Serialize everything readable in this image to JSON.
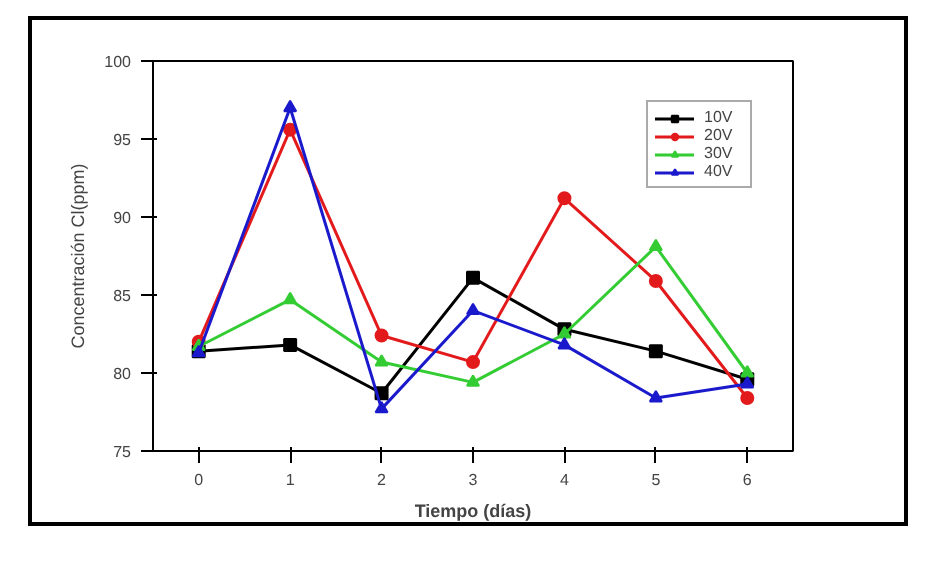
{
  "chart_data": {
    "type": "line",
    "xlabel": "Tiempo (días)",
    "ylabel": "Concentración Cl(ppm)",
    "x": [
      0,
      1,
      2,
      3,
      4,
      5,
      6
    ],
    "xlim": [
      -0.5,
      6.5
    ],
    "xticks": [
      0,
      1,
      2,
      3,
      4,
      5,
      6
    ],
    "ylim": [
      75,
      100
    ],
    "yticks": [
      75,
      80,
      85,
      90,
      95,
      100
    ],
    "grid": false,
    "legend": "top right",
    "series": [
      {
        "name": "10V",
        "color": "#000000",
        "marker": "square",
        "values": [
          81.4,
          81.8,
          78.7,
          86.1,
          82.8,
          81.4,
          79.6
        ]
      },
      {
        "name": "20V",
        "color": "#e31a1c",
        "marker": "circle",
        "values": [
          82.0,
          95.6,
          82.4,
          80.7,
          91.2,
          85.9,
          78.4
        ]
      },
      {
        "name": "30V",
        "color": "#33cc33",
        "marker": "triangle",
        "values": [
          81.7,
          84.7,
          80.7,
          79.4,
          82.5,
          88.1,
          80.0
        ]
      },
      {
        "name": "40V",
        "color": "#1a1acc",
        "marker": "triangle",
        "values": [
          81.3,
          97.0,
          77.7,
          84.0,
          81.8,
          78.4,
          79.3
        ]
      }
    ]
  }
}
